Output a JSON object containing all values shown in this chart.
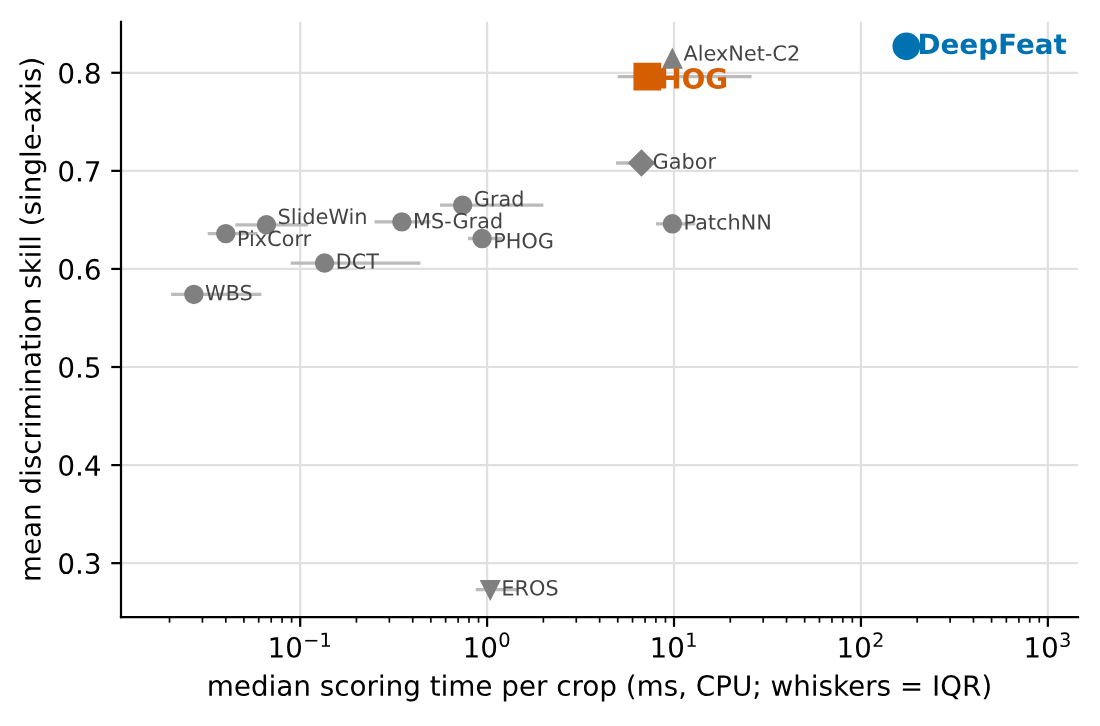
{
  "chart_data": {
    "type": "scatter",
    "xlabel": "median scoring time per crop (ms, CPU; whiskers = IQR)",
    "ylabel": "mean discrimination skill (single-axis)",
    "log": "x",
    "xlim": [
      0.011,
      1450
    ],
    "ylim": [
      0.245,
      0.852
    ],
    "xticks": [
      {
        "value": 0.1,
        "label": "10$^{−1}$"
      },
      {
        "value": 1,
        "label": "10$^{0}$"
      },
      {
        "value": 10,
        "label": "10$^{1}$"
      },
      {
        "value": 100,
        "label": "10$^{2}$"
      },
      {
        "value": 1000,
        "label": "10$^{3}$"
      }
    ],
    "yticks": [
      0.3,
      0.4,
      0.5,
      0.6,
      0.7,
      0.8
    ],
    "grid": true,
    "legend": false,
    "series": [
      {
        "name": "WBS",
        "color": "#808080",
        "marker": "circle",
        "x": [
          0.027
        ],
        "values": [
          0.574
        ],
        "xerrors": [
          [
            0.0204,
            0.062
          ]
        ]
      },
      {
        "name": "PixCorr",
        "color": "#808080",
        "marker": "circle",
        "x": [
          0.04
        ],
        "values": [
          0.636
        ],
        "xerrors": [
          [
            0.032,
            0.059
          ]
        ]
      },
      {
        "name": "SlideWin",
        "color": "#808080",
        "marker": "circle",
        "x": [
          0.066
        ],
        "values": [
          0.645
        ],
        "xerrors": [
          [
            0.045,
            0.11
          ]
        ]
      },
      {
        "name": "DCT",
        "color": "#808080",
        "marker": "circle",
        "x": [
          0.135
        ],
        "values": [
          0.606
        ],
        "xerrors": [
          [
            0.089,
            0.44
          ]
        ]
      },
      {
        "name": "MS-Grad",
        "color": "#808080",
        "marker": "circle",
        "x": [
          0.35
        ],
        "values": [
          0.648
        ],
        "xerrors": [
          [
            0.25,
            0.5
          ]
        ]
      },
      {
        "name": "Grad",
        "color": "#808080",
        "marker": "circle",
        "x": [
          0.74
        ],
        "values": [
          0.665
        ],
        "xerrors": [
          [
            0.56,
            2.0
          ]
        ]
      },
      {
        "name": "PHOG",
        "color": "#808080",
        "marker": "circle",
        "x": [
          0.94
        ],
        "values": [
          0.631
        ],
        "xerrors": [
          [
            0.79,
            1.2
          ]
        ]
      },
      {
        "name": "Gabor",
        "color": "#808080",
        "marker": "diamond",
        "x": [
          6.7
        ],
        "values": [
          0.708
        ],
        "xerrors": [
          [
            4.9,
            7.9
          ]
        ]
      },
      {
        "name": "PatchNN",
        "color": "#808080",
        "marker": "circle",
        "x": [
          9.8
        ],
        "values": [
          0.646
        ],
        "xerrors": [
          [
            8.0,
            13
          ]
        ]
      },
      {
        "name": "AlexNet-C2",
        "color": "#808080",
        "marker": "triangle",
        "x": [
          9.8
        ],
        "values": [
          0.814
        ]
      },
      {
        "name": "HOG",
        "color": "#d55e00",
        "marker": "square",
        "x": [
          7.2
        ],
        "values": [
          0.796
        ],
        "xerrors": [
          [
            5.0,
            26
          ]
        ]
      },
      {
        "name": "DeepFeat",
        "color": "#0072b2",
        "marker": "circle",
        "x": [
          175
        ],
        "values": [
          0.827
        ]
      },
      {
        "name": "EROS",
        "color": "#808080",
        "marker": "triangle-down",
        "x": [
          1.04
        ],
        "values": [
          0.273
        ],
        "xerrors": [
          [
            0.87,
            1.47
          ]
        ]
      }
    ]
  }
}
